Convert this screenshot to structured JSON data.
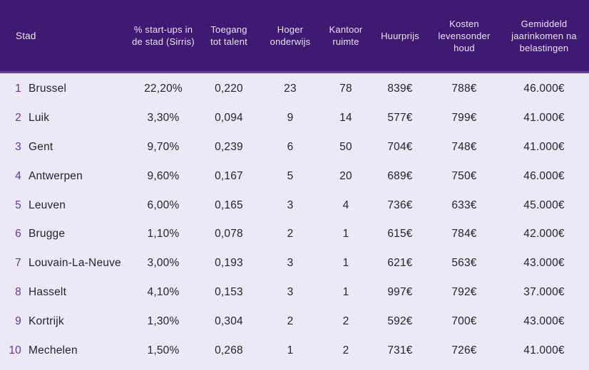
{
  "colors": {
    "header_bg": "#3e1a72",
    "header_text": "#eae4f6",
    "header_border": "#654099",
    "body_bg": "#ece9f7",
    "rank_text": "#63369c",
    "cell_text": "#26232e"
  },
  "table": {
    "columns": [
      {
        "label": "Stad"
      },
      {
        "label": "% start-ups in de stad (Sirris)"
      },
      {
        "label": "Toegang tot talent"
      },
      {
        "label": "Hoger onderwijs"
      },
      {
        "label": "Kantoor ruimte"
      },
      {
        "label": "Huurprijs"
      },
      {
        "label": "Kosten levensonder houd"
      },
      {
        "label": "Gemiddeld jaarinkomen na belastingen"
      }
    ],
    "rows": [
      {
        "rank": "1",
        "city": "Brussel",
        "values": [
          "22,20%",
          "0,220",
          "23",
          "78",
          "839€",
          "788€",
          "46.000€"
        ]
      },
      {
        "rank": "2",
        "city": "Luik",
        "values": [
          "3,30%",
          "0,094",
          "9",
          "14",
          "577€",
          "799€",
          "41.000€"
        ]
      },
      {
        "rank": "3",
        "city": "Gent",
        "values": [
          "9,70%",
          "0,239",
          "6",
          "50",
          "704€",
          "748€",
          "41.000€"
        ]
      },
      {
        "rank": "4",
        "city": "Antwerpen",
        "values": [
          "9,60%",
          "0,167",
          "5",
          "20",
          "689€",
          "750€",
          "46.000€"
        ]
      },
      {
        "rank": "5",
        "city": "Leuven",
        "values": [
          "6,00%",
          "0,165",
          "3",
          "4",
          "736€",
          "633€",
          "45.000€"
        ]
      },
      {
        "rank": "6",
        "city": "Brugge",
        "values": [
          "1,10%",
          "0,078",
          "2",
          "1",
          "615€",
          "784€",
          "42.000€"
        ]
      },
      {
        "rank": "7",
        "city": "Louvain-La-Neuve",
        "values": [
          "3,00%",
          "0,193",
          "3",
          "1",
          "621€",
          "563€",
          "43.000€"
        ]
      },
      {
        "rank": "8",
        "city": "Hasselt",
        "values": [
          "4,10%",
          "0,153",
          "3",
          "1",
          "997€",
          "792€",
          "37.000€"
        ]
      },
      {
        "rank": "9",
        "city": "Kortrijk",
        "values": [
          "1,30%",
          "0,304",
          "2",
          "2",
          "592€",
          "700€",
          "43.000€"
        ]
      },
      {
        "rank": "10",
        "city": "Mechelen",
        "values": [
          "1,50%",
          "0,268",
          "1",
          "2",
          "731€",
          "726€",
          "41.000€"
        ]
      }
    ]
  }
}
